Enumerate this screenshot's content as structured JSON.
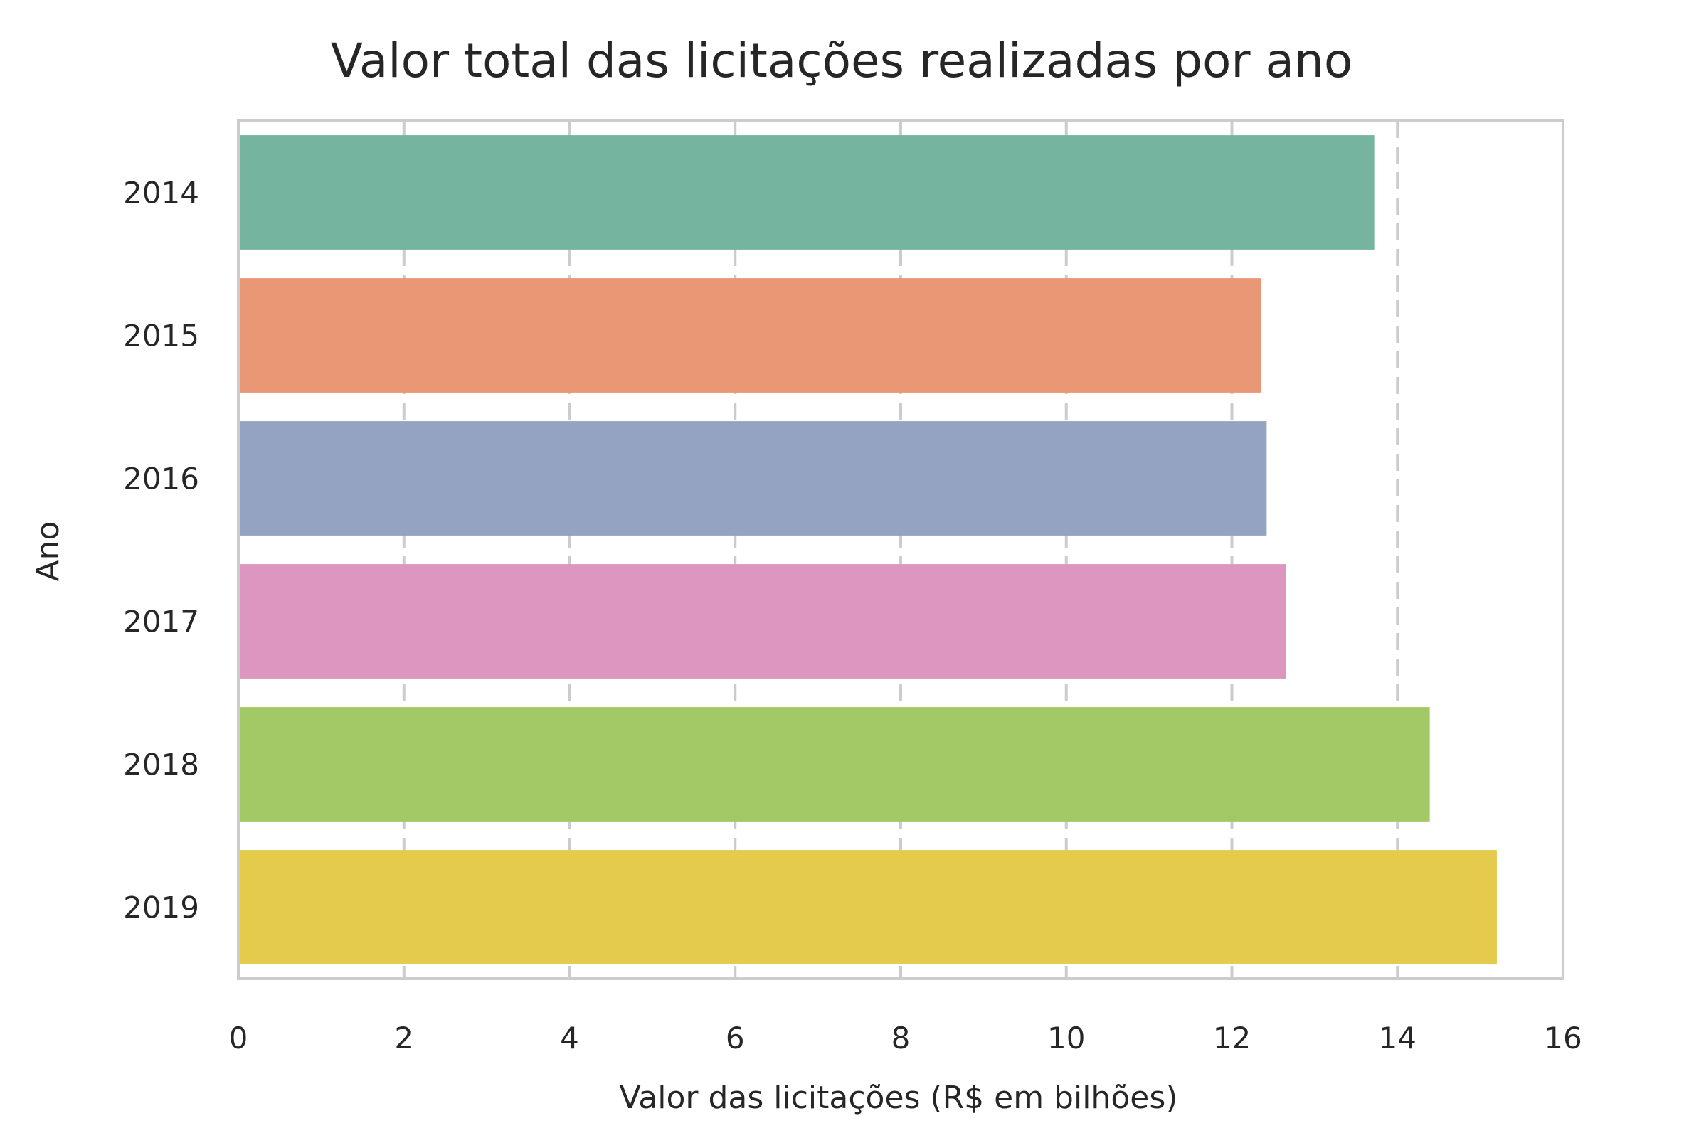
{
  "chart_data": {
    "type": "bar",
    "orientation": "horizontal",
    "title": "Valor total das licitações realizadas por ano",
    "xlabel": "Valor das licitações (R$ em bilhões)",
    "ylabel": "Ano",
    "categories": [
      "2014",
      "2015",
      "2016",
      "2017",
      "2018",
      "2019"
    ],
    "values": [
      13.72,
      12.35,
      12.42,
      12.65,
      14.39,
      15.2
    ],
    "colors": [
      "#75b5a0",
      "#e99775",
      "#94a3c2",
      "#dc96c0",
      "#a3c966",
      "#e4cb4b"
    ],
    "xlim": [
      0,
      16
    ],
    "xticks": [
      "0",
      "2",
      "4",
      "6",
      "8",
      "10",
      "12",
      "14",
      "16"
    ],
    "grid": true,
    "grid_color": "#cccccc",
    "frame_color": "#cccccc"
  }
}
